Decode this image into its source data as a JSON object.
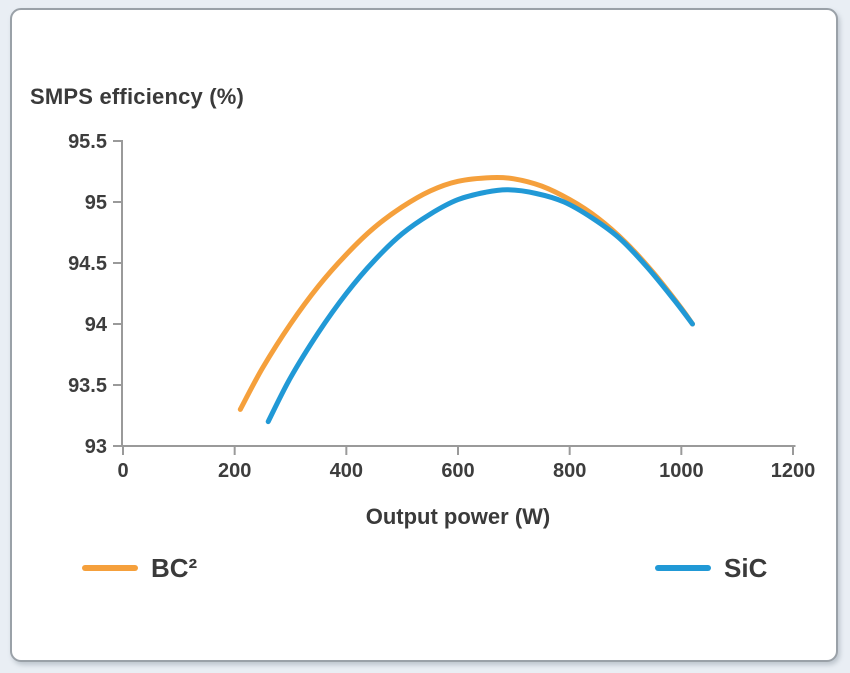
{
  "chart_data": {
    "type": "line",
    "title": "SMPS efficiency (%)",
    "x_label": "Output power (W)",
    "x_range": [
      0,
      1200
    ],
    "y_range": [
      93,
      95.5
    ],
    "x_ticks": [
      0,
      200,
      400,
      600,
      800,
      1000,
      1200
    ],
    "y_ticks": [
      93,
      93.5,
      94,
      94.5,
      95,
      95.5
    ],
    "grid": false,
    "legend_position": "bottom",
    "axis_color": "#9a9a9a",
    "text_color": "#3d3d3d",
    "background_color": "#e9eef4",
    "card_color": "#ffffff",
    "series": [
      {
        "name": "BC²",
        "color": "#f5a03c",
        "points": [
          [
            210,
            93.3
          ],
          [
            250,
            93.64
          ],
          [
            300,
            94.0
          ],
          [
            350,
            94.31
          ],
          [
            400,
            94.57
          ],
          [
            450,
            94.79
          ],
          [
            500,
            94.96
          ],
          [
            550,
            95.09
          ],
          [
            600,
            95.17
          ],
          [
            660,
            95.2
          ],
          [
            700,
            95.19
          ],
          [
            750,
            95.13
          ],
          [
            800,
            95.02
          ],
          [
            850,
            94.87
          ],
          [
            900,
            94.67
          ],
          [
            950,
            94.42
          ],
          [
            1000,
            94.13
          ],
          [
            1020,
            94.0
          ]
        ]
      },
      {
        "name": "SiC",
        "color": "#2199d6",
        "points": [
          [
            260,
            93.2
          ],
          [
            300,
            93.56
          ],
          [
            350,
            93.93
          ],
          [
            400,
            94.25
          ],
          [
            450,
            94.52
          ],
          [
            500,
            94.74
          ],
          [
            550,
            94.9
          ],
          [
            600,
            95.02
          ],
          [
            650,
            95.08
          ],
          [
            690,
            95.1
          ],
          [
            740,
            95.07
          ],
          [
            790,
            95.0
          ],
          [
            840,
            94.87
          ],
          [
            890,
            94.7
          ],
          [
            940,
            94.46
          ],
          [
            990,
            94.18
          ],
          [
            1020,
            94.0
          ]
        ]
      }
    ]
  }
}
